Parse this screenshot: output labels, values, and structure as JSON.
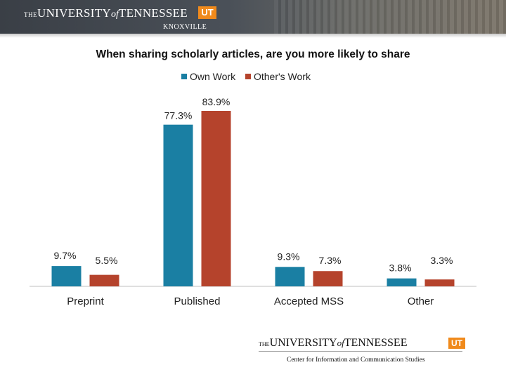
{
  "header": {
    "the": "THE",
    "university": "UNIVERSITY",
    "of": "of",
    "tennessee": "TENNESSEE",
    "ut": "UT",
    "city": "KNOXVILLE"
  },
  "footer": {
    "the": "THE",
    "university": "UNIVERSITY",
    "of": "of",
    "tennessee": "TENNESSEE",
    "ut": "UT",
    "subtitle": "Center for Information and Communication Studies"
  },
  "chart_data": {
    "type": "bar",
    "title": "When sharing scholarly articles, are you more likely to share",
    "categories": [
      "Preprint",
      "Published",
      "Accepted MSS",
      "Other"
    ],
    "series": [
      {
        "name": "Own Work",
        "color": "#1a7fa3",
        "values": [
          9.7,
          77.3,
          9.3,
          3.8
        ],
        "labels": [
          "9.7%",
          "77.3%",
          "9.3%",
          "3.8%"
        ]
      },
      {
        "name": "Other's Work",
        "color": "#b5432c",
        "values": [
          5.5,
          83.9,
          7.3,
          3.3
        ],
        "labels": [
          "5.5%",
          "83.9%",
          "7.3%",
          "3.3%"
        ]
      }
    ],
    "ylim": [
      0,
      100
    ],
    "grid": false,
    "legend": "top-center"
  }
}
